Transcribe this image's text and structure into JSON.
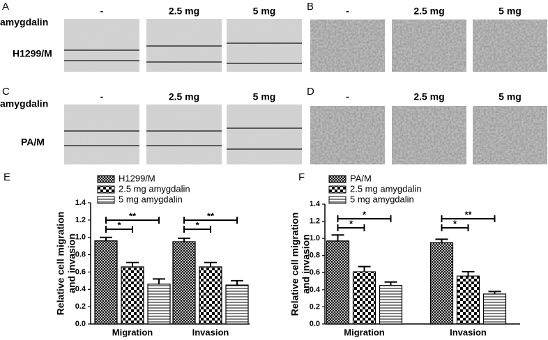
{
  "panels": [
    {
      "label": "A",
      "row_label": "amygdalin",
      "cell_line": "H1299/M",
      "conditions": [
        "-",
        "2.5 mg",
        "5 mg"
      ]
    },
    {
      "label": "B",
      "conditions": [
        "-",
        "2.5 mg",
        "5 mg"
      ]
    },
    {
      "label": "C",
      "row_label": "amygdalin",
      "cell_line": "PA/M",
      "conditions": [
        "-",
        "2.5 mg",
        "5 mg"
      ]
    },
    {
      "label": "D",
      "conditions": [
        "-",
        "2.5 mg",
        "5 mg"
      ]
    }
  ],
  "chart_data": [
    {
      "type": "bar",
      "panel": "E",
      "ylabel": [
        "Relative cell migration",
        "and invasion"
      ],
      "categories": [
        "Migration",
        "Invasion"
      ],
      "series": [
        {
          "name": "H1299/M",
          "pattern": "crosshatch",
          "color": "#000000",
          "values": [
            0.96,
            0.95
          ],
          "errors": [
            0.04,
            0.04
          ]
        },
        {
          "name": "2.5 mg amygdalin",
          "pattern": "checker",
          "color": "#000000",
          "values": [
            0.66,
            0.66
          ],
          "errors": [
            0.05,
            0.05
          ]
        },
        {
          "name": "5 mg amygdalin",
          "pattern": "hlines",
          "color": "#000000",
          "values": [
            0.46,
            0.45
          ],
          "errors": [
            0.06,
            0.05
          ]
        }
      ],
      "annotations": [
        "*",
        "**",
        "*",
        "**"
      ],
      "ylim": [
        0,
        1.4
      ],
      "yticks": [
        {
          "value": 0,
          "label": "0.0"
        },
        0.2,
        0.4,
        0.6,
        0.8,
        {
          "value": 1,
          "label": "1.0"
        },
        1.2,
        1.4
      ]
    },
    {
      "type": "bar",
      "panel": "F",
      "ylabel": [
        "Relative cell migration",
        "and invasion"
      ],
      "categories": [
        "Migration",
        "Invasion"
      ],
      "series": [
        {
          "name": "PA/M",
          "pattern": "crosshatch",
          "color": "#000000",
          "values": [
            0.97,
            0.95
          ],
          "errors": [
            0.07,
            0.04
          ]
        },
        {
          "name": "2.5 mg amygdalin",
          "pattern": "checker",
          "color": "#000000",
          "values": [
            0.61,
            0.56
          ],
          "errors": [
            0.06,
            0.05
          ]
        },
        {
          "name": "5 mg amygdalin",
          "pattern": "hlines",
          "color": "#000000",
          "values": [
            0.45,
            0.35
          ],
          "errors": [
            0.04,
            0.03
          ]
        }
      ],
      "annotations": [
        "*",
        "*",
        "*",
        "**"
      ],
      "ylim": [
        0,
        1.4
      ],
      "yticks": [
        {
          "value": 0,
          "label": "0.0"
        },
        0.2,
        0.4,
        0.6,
        0.8,
        {
          "value": 1,
          "label": "1.0"
        },
        1.2,
        1.4
      ]
    }
  ]
}
